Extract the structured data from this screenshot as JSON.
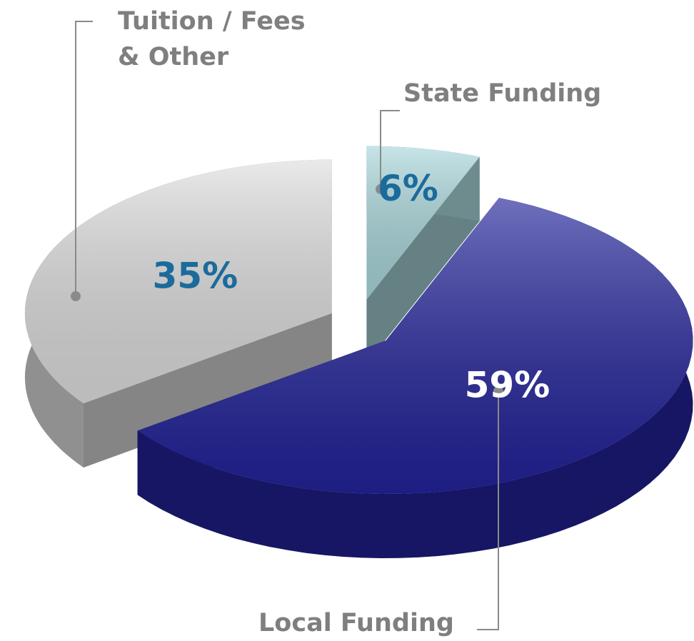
{
  "chart_data": {
    "type": "pie",
    "categories": [
      "State Funding",
      "Local Funding",
      "Tuition / Fees & Other"
    ],
    "values": [
      6,
      59,
      35
    ],
    "value_labels": [
      "6%",
      "59%",
      "35%"
    ],
    "colors": [
      "#a9d7db",
      "#22229a",
      "#dedede"
    ]
  }
}
